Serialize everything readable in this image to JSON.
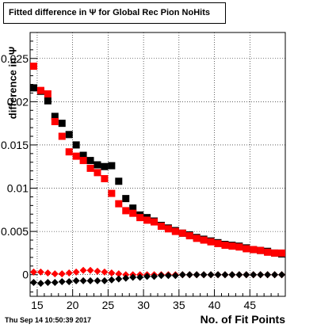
{
  "title": "Fitted difference in  Ψ  for Global Rec Pion NoHits",
  "timestamp": "Thu Sep 14 10:50:39 2017",
  "chart_data": {
    "type": "scatter",
    "title": "Fitted difference in  Ψ  for Global Rec Pion NoHits",
    "xlabel": "No. of Fit Points",
    "ylabel": "difference in Ψ",
    "xlim": [
      14,
      50
    ],
    "ylim": [
      -0.0025,
      0.028
    ],
    "grid": true,
    "x_ticks": [
      15,
      20,
      25,
      30,
      35,
      40,
      45
    ],
    "x_tick_labels": [
      "15",
      "20",
      "25",
      "30",
      "35",
      "40",
      "45"
    ],
    "y_ticks": [
      0,
      0.005,
      0.01,
      0.015,
      0.02,
      0.025
    ],
    "y_tick_labels": [
      "0",
      "0.005",
      "0.01",
      "0.015",
      "0.02",
      "0.025"
    ],
    "x": [
      14.5,
      15.5,
      16.5,
      17.5,
      18.5,
      19.5,
      20.5,
      21.5,
      22.5,
      23.5,
      24.5,
      25.5,
      26.5,
      27.5,
      28.5,
      29.5,
      30.5,
      31.5,
      32.5,
      33.5,
      34.5,
      35.5,
      36.5,
      37.5,
      38.5,
      39.5,
      40.5,
      41.5,
      42.5,
      43.5,
      44.5,
      45.5,
      46.5,
      47.5,
      48.5,
      49.5
    ],
    "series": [
      {
        "marker": "square",
        "color": "#000000",
        "values": [
          0.0216,
          0.0212,
          0.0201,
          0.0183,
          0.0175,
          0.0162,
          0.015,
          0.0138,
          0.0132,
          0.0127,
          0.0125,
          0.0126,
          0.0108,
          0.0088,
          0.0077,
          0.0069,
          0.0066,
          0.0062,
          0.0057,
          0.0054,
          0.0051,
          0.0048,
          0.0046,
          0.0043,
          0.0041,
          0.0039,
          0.0037,
          0.0035,
          0.0034,
          0.0033,
          0.0031,
          0.0029,
          0.0028,
          0.0027,
          0.0025,
          0.0024
        ]
      },
      {
        "marker": "square",
        "color": "#ff0000",
        "values": [
          0.0241,
          0.0213,
          0.0209,
          0.0177,
          0.016,
          0.0142,
          0.0137,
          0.0132,
          0.0123,
          0.0118,
          0.0111,
          0.0094,
          0.0082,
          0.0074,
          0.0071,
          0.0066,
          0.0063,
          0.0061,
          0.0056,
          0.0053,
          0.005,
          0.0048,
          0.0045,
          0.0042,
          0.004,
          0.0038,
          0.0036,
          0.0034,
          0.0033,
          0.0032,
          0.003,
          0.0029,
          0.0028,
          0.0026,
          0.0025,
          0.0025
        ]
      },
      {
        "marker": "diamond",
        "color": "#ff0000",
        "values": [
          0.0003,
          0.0003,
          0.0002,
          0.0001,
          0.0001,
          0.0002,
          0.0003,
          0.0005,
          0.0005,
          0.0004,
          0.0003,
          0.0002,
          0.0001,
          0.0,
          0.0,
          0.0,
          0.0,
          0.0,
          0.0,
          0.0,
          0.0,
          0.0,
          0.0,
          0.0,
          0.0,
          0.0,
          0.0,
          0.0,
          0.0,
          0.0,
          0.0,
          0.0,
          0.0,
          0.0,
          0.0,
          0.0
        ]
      },
      {
        "marker": "diamond",
        "color": "#000000",
        "values": [
          -0.0009,
          -0.001,
          -0.0009,
          -0.0009,
          -0.0008,
          -0.0008,
          -0.0007,
          -0.0007,
          -0.0007,
          -0.0007,
          -0.0007,
          -0.0006,
          -0.0005,
          -0.0004,
          -0.0003,
          -0.0003,
          -0.0002,
          -0.0002,
          -0.0001,
          -0.0001,
          -0.0001,
          0.0,
          0.0,
          0.0,
          0.0,
          0.0,
          0.0,
          0.0,
          0.0,
          0.0,
          0.0,
          0.0,
          0.0,
          0.0,
          0.0,
          0.0
        ]
      }
    ]
  }
}
